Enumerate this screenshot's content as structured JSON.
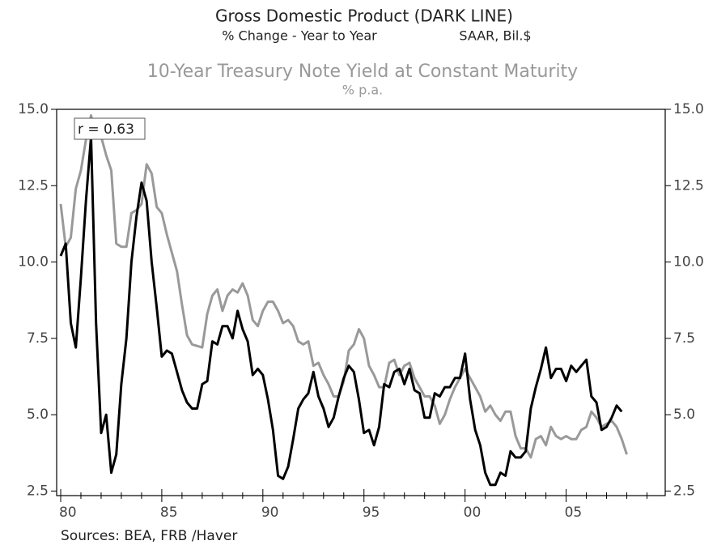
{
  "chart_data": {
    "type": "line",
    "title": "Gross Domestic Product (DARK LINE)",
    "subtitle": "% Change - Year to Year",
    "units": "SAAR, Bil.$",
    "title2": "10-Year Treasury Note Yield at Constant Maturity",
    "subtitle2": "% p.a.",
    "annotation": "r = 0.63",
    "source": "Sources:  BEA, FRB /Haver",
    "x": [
      1980,
      1980.25,
      1980.5,
      1980.75,
      1981,
      1981.25,
      1981.5,
      1981.75,
      1982,
      1982.25,
      1982.5,
      1982.75,
      1983,
      1983.25,
      1983.5,
      1983.75,
      1984,
      1984.25,
      1984.5,
      1984.75,
      1985,
      1985.25,
      1985.5,
      1985.75,
      1986,
      1986.25,
      1986.5,
      1986.75,
      1987,
      1987.25,
      1987.5,
      1987.75,
      1988,
      1988.25,
      1988.5,
      1988.75,
      1989,
      1989.25,
      1989.5,
      1989.75,
      1990,
      1990.25,
      1990.5,
      1990.75,
      1991,
      1991.25,
      1991.5,
      1991.75,
      1992,
      1992.25,
      1992.5,
      1992.75,
      1993,
      1993.25,
      1993.5,
      1993.75,
      1994,
      1994.25,
      1994.5,
      1994.75,
      1995,
      1995.25,
      1995.5,
      1995.75,
      1996,
      1996.25,
      1996.5,
      1996.75,
      1997,
      1997.25,
      1997.5,
      1997.75,
      1998,
      1998.25,
      1998.5,
      1998.75,
      1999,
      1999.25,
      1999.5,
      1999.75,
      2000,
      2000.25,
      2000.5,
      2000.75,
      2001,
      2001.25,
      2001.5,
      2001.75,
      2002,
      2002.25,
      2002.5,
      2002.75,
      2003,
      2003.25,
      2003.5,
      2003.75,
      2004,
      2004.25,
      2004.5,
      2004.75,
      2005,
      2005.25,
      2005.5,
      2005.75,
      2006,
      2006.25,
      2006.5,
      2006.75,
      2007,
      2007.25,
      2007.5,
      2007.75,
      2008
    ],
    "series": [
      {
        "color": "#000000",
        "values": [
          10.2,
          10.6,
          8.0,
          7.2,
          9.5,
          12.0,
          14.1,
          8.0,
          4.4,
          5.0,
          3.1,
          3.7,
          6.0,
          7.5,
          10.0,
          11.5,
          12.6,
          12.0,
          10.0,
          8.5,
          6.9,
          7.1,
          7.0,
          6.4,
          5.8,
          5.4,
          5.2,
          5.2,
          6.0,
          6.1,
          7.4,
          7.3,
          7.9,
          7.9,
          7.5,
          8.4,
          7.8,
          7.4,
          6.3,
          6.5,
          6.3,
          5.5,
          4.5,
          3.0,
          2.9,
          3.3,
          4.2,
          5.2,
          5.5,
          5.7,
          6.4,
          5.6,
          5.2,
          4.6,
          4.9,
          5.6,
          6.2,
          6.6,
          6.4,
          5.5,
          4.4,
          4.5,
          4.0,
          4.6,
          6.0,
          5.9,
          6.4,
          6.5,
          6.0,
          6.5,
          5.8,
          5.7,
          4.9,
          4.9,
          5.7,
          5.6,
          5.9,
          5.9,
          6.2,
          6.2,
          7.0,
          5.5,
          4.5,
          4.0,
          3.1,
          2.7,
          2.7,
          3.1,
          3.0,
          3.8,
          3.6,
          3.6,
          3.8,
          5.2,
          5.9,
          6.5,
          7.2,
          6.2,
          6.5,
          6.5,
          6.1,
          6.6,
          6.4,
          6.6,
          6.8,
          5.6,
          5.4,
          4.5,
          4.6,
          4.9,
          5.3,
          5.1,
          null
        ]
      },
      {
        "color": "#999999",
        "values": [
          11.9,
          10.5,
          10.8,
          12.4,
          13.0,
          14.0,
          14.8,
          14.1,
          14.1,
          13.5,
          13.0,
          10.6,
          10.5,
          10.5,
          11.6,
          11.7,
          11.9,
          13.2,
          12.9,
          11.8,
          11.6,
          10.9,
          10.3,
          9.7,
          8.6,
          7.6,
          7.3,
          7.25,
          7.2,
          8.3,
          8.9,
          9.1,
          8.4,
          8.9,
          9.1,
          9.0,
          9.3,
          8.9,
          8.1,
          7.9,
          8.4,
          8.7,
          8.7,
          8.4,
          8.0,
          8.1,
          7.9,
          7.4,
          7.3,
          7.4,
          6.6,
          6.7,
          6.3,
          6.0,
          5.6,
          5.6,
          6.1,
          7.1,
          7.3,
          7.8,
          7.5,
          6.6,
          6.3,
          5.9,
          5.9,
          6.7,
          6.8,
          6.3,
          6.6,
          6.7,
          6.2,
          5.9,
          5.6,
          5.6,
          5.3,
          4.7,
          5.0,
          5.5,
          5.9,
          6.2,
          6.5,
          6.2,
          5.9,
          5.6,
          5.1,
          5.3,
          5.0,
          4.8,
          5.1,
          5.1,
          4.3,
          3.9,
          3.9,
          3.6,
          4.2,
          4.3,
          4.0,
          4.6,
          4.3,
          4.2,
          4.3,
          4.2,
          4.2,
          4.5,
          4.6,
          5.1,
          4.9,
          4.6,
          4.7,
          4.8,
          4.6,
          4.2,
          3.7
        ]
      }
    ],
    "xlim": [
      1979.8,
      2009.9
    ],
    "xticks": [
      {
        "value": 1980,
        "label": "80"
      },
      {
        "value": 1985,
        "label": "85"
      },
      {
        "value": 1990,
        "label": "90"
      },
      {
        "value": 1995,
        "label": "95"
      },
      {
        "value": 2000,
        "label": "00"
      },
      {
        "value": 2005,
        "label": "05"
      }
    ],
    "xminorticks": [
      1981,
      1982,
      1983,
      1984,
      1986,
      1987,
      1988,
      1989,
      1991,
      1992,
      1993,
      1994,
      1996,
      1997,
      1998,
      1999,
      2001,
      2002,
      2003,
      2004,
      2006,
      2007,
      2008,
      2009
    ],
    "ylim": [
      2.35,
      15
    ],
    "yticks": [
      2.5,
      {
        "value": 5,
        "label": "5.0"
      },
      7.5,
      {
        "value": 10,
        "label": "10.0"
      },
      12.5,
      {
        "value": 15,
        "label": "15.0"
      }
    ],
    "y2lim": [
      2.35,
      15
    ],
    "y2ticks": [
      2.5,
      {
        "value": 5,
        "label": "5.0"
      },
      7.5,
      {
        "value": 10,
        "label": "10.0"
      },
      12.5,
      {
        "value": 15,
        "label": "15.0"
      }
    ]
  }
}
